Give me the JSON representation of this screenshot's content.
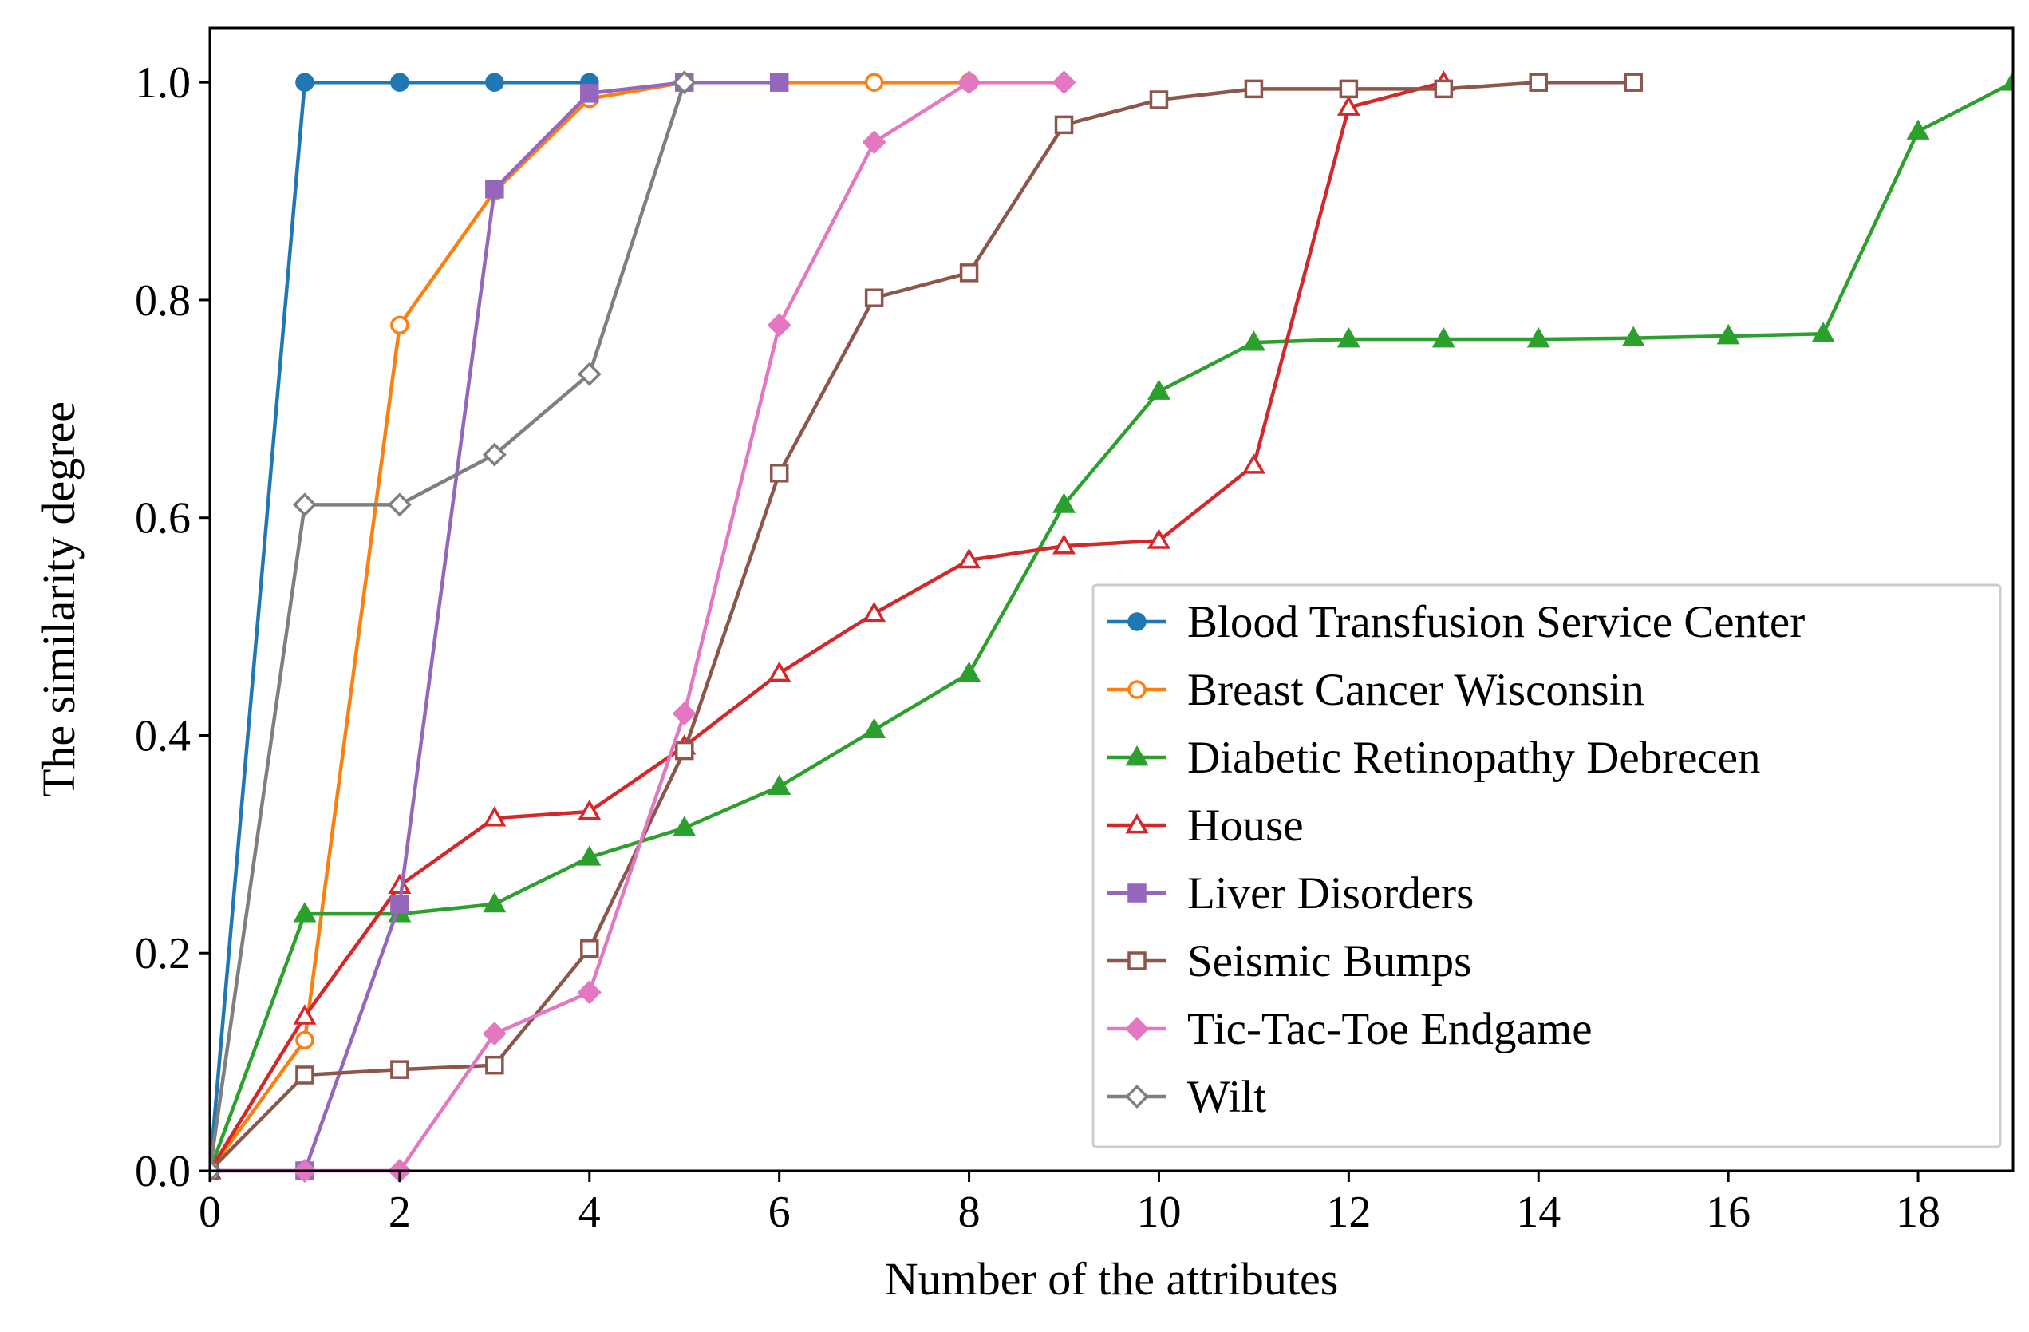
{
  "chart_data": {
    "type": "line",
    "title": "",
    "xlabel": "Number of the attributes",
    "ylabel": "The similarity degree",
    "xlim": [
      0,
      19
    ],
    "ylim": [
      0,
      1.05
    ],
    "xticks": [
      0,
      2,
      4,
      6,
      8,
      10,
      12,
      14,
      16,
      18
    ],
    "xtick_labels": [
      "0",
      "2",
      "4",
      "6",
      "8",
      "10",
      "12",
      "14",
      "16",
      "18"
    ],
    "yticks": [
      0.0,
      0.2,
      0.4,
      0.6,
      0.8,
      1.0
    ],
    "ytick_labels": [
      "0.0",
      "0.2",
      "0.4",
      "0.6",
      "0.8",
      "1.0"
    ],
    "grid": false,
    "legend_position": "lower-right",
    "series": [
      {
        "name": "Blood Transfusion Service Center",
        "color": "#1f77b4",
        "marker": "circle",
        "filled": true,
        "x": [
          0,
          1,
          2,
          3,
          4
        ],
        "y": [
          0.0,
          1.0,
          1.0,
          1.0,
          1.0
        ]
      },
      {
        "name": "Breast Cancer Wisconsin",
        "color": "#ff7f0e",
        "marker": "circle",
        "filled": false,
        "x": [
          0,
          1,
          2,
          3,
          4,
          5,
          6,
          7,
          8
        ],
        "y": [
          0.0,
          0.12,
          0.777,
          0.9,
          0.985,
          1.0,
          1.0,
          1.0,
          1.0
        ]
      },
      {
        "name": "Diabetic Retinopathy Debrecen",
        "color": "#2ca02c",
        "marker": "triangle-up",
        "filled": true,
        "x": [
          0,
          1,
          2,
          3,
          4,
          5,
          6,
          7,
          8,
          9,
          10,
          11,
          12,
          13,
          14,
          15,
          16,
          17,
          18,
          19
        ],
        "y": [
          0.0,
          0.236,
          0.236,
          0.245,
          0.288,
          0.315,
          0.353,
          0.405,
          0.457,
          0.612,
          0.716,
          0.761,
          0.764,
          0.764,
          0.764,
          0.765,
          0.767,
          0.769,
          0.955,
          1.0
        ]
      },
      {
        "name": "House",
        "color": "#d62728",
        "marker": "triangle-up",
        "filled": false,
        "x": [
          0,
          1,
          2,
          3,
          4,
          5,
          6,
          7,
          8,
          9,
          10,
          11,
          12,
          13
        ],
        "y": [
          0.0,
          0.142,
          0.262,
          0.324,
          0.33,
          0.39,
          0.457,
          0.512,
          0.561,
          0.574,
          0.579,
          0.648,
          0.977,
          1.0
        ]
      },
      {
        "name": "Liver Disorders",
        "color": "#9467bd",
        "marker": "square",
        "filled": true,
        "x": [
          0,
          1,
          2,
          3,
          4,
          5,
          6
        ],
        "y": [
          0.0,
          0.0,
          0.245,
          0.902,
          0.99,
          1.0,
          1.0
        ]
      },
      {
        "name": "Seismic Bumps",
        "color": "#8c564b",
        "marker": "square",
        "filled": false,
        "x": [
          0,
          1,
          2,
          3,
          4,
          5,
          6,
          7,
          8,
          9,
          10,
          11,
          12,
          13,
          14,
          15
        ],
        "y": [
          0.0,
          0.088,
          0.093,
          0.097,
          0.204,
          0.386,
          0.641,
          0.802,
          0.825,
          0.961,
          0.984,
          0.994,
          0.994,
          0.994,
          1.0,
          1.0
        ]
      },
      {
        "name": "Tic-Tac-Toe Endgame",
        "color": "#e377c2",
        "marker": "diamond",
        "filled": true,
        "x": [
          0,
          1,
          2,
          3,
          4,
          5,
          6,
          7,
          8,
          9
        ],
        "y": [
          0.0,
          0.0,
          0.0,
          0.126,
          0.164,
          0.42,
          0.777,
          0.945,
          1.0,
          1.0
        ]
      },
      {
        "name": "Wilt",
        "color": "#7f7f7f",
        "marker": "diamond",
        "filled": false,
        "x": [
          0,
          1,
          2,
          3,
          4,
          5
        ],
        "y": [
          0.0,
          0.612,
          0.612,
          0.658,
          0.732,
          1.0
        ]
      }
    ]
  }
}
